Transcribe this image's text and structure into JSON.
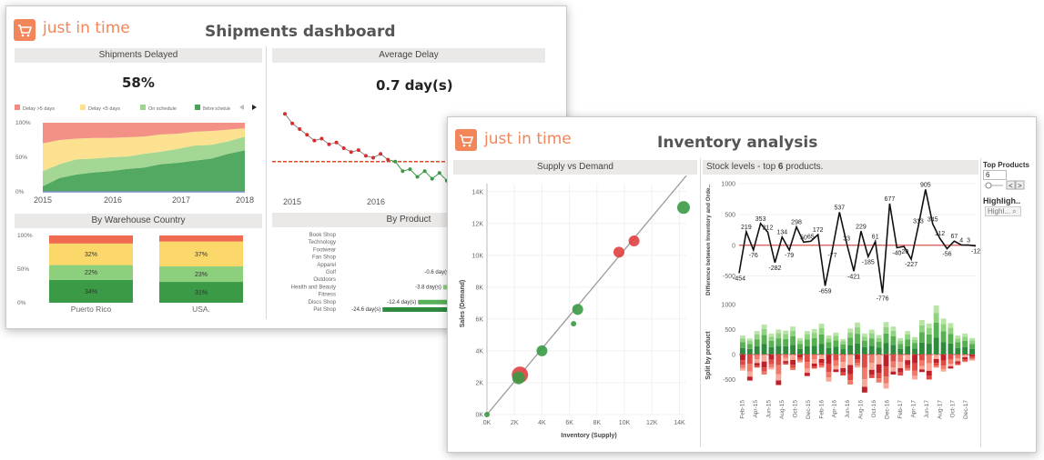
{
  "brand": "just in time",
  "shipments": {
    "title": "Shipments dashboard",
    "delayed_header": "Shipments Delayed",
    "delayed_value": "58%",
    "avg_header": "Average Delay",
    "avg_value": "0.7 day(s)",
    "warehouse_header": "By Warehouse Country",
    "product_header": "By Product",
    "legend": [
      "Delay >5 days",
      "Delay <5 days",
      "On schedule",
      "Before schedule"
    ],
    "legend_colors": [
      "#f28b80",
      "#fce08a",
      "#9fd48e",
      "#4aa35a"
    ]
  },
  "inventory": {
    "title": "Inventory analysis",
    "supply_header": "Supply vs Demand",
    "stock_header_pre": "Stock levels - top ",
    "stock_header_num": "6",
    "stock_header_post": " products.",
    "side": {
      "top_products_label": "Top Products",
      "top_products_value": "6",
      "highlight_label": "Highligh..",
      "highlight_placeholder": "Highl... ⌕"
    }
  },
  "chart_data": [
    {
      "id": "shipments_delayed",
      "type": "area",
      "x_ticks": [
        "2015",
        "2016",
        "2017",
        "2018"
      ],
      "y_ticks": [
        "0%",
        "50%",
        "100%"
      ],
      "ylim": [
        0,
        100
      ],
      "series": [
        {
          "name": "Before schedule",
          "values": [
            8,
            20,
            25,
            28,
            30,
            33,
            35,
            40,
            42,
            45,
            48,
            55,
            60
          ]
        },
        {
          "name": "On schedule",
          "values": [
            22,
            20,
            22,
            20,
            20,
            18,
            20,
            18,
            20,
            22,
            20,
            18,
            20
          ]
        },
        {
          "name": "Delay <5 days",
          "values": [
            40,
            35,
            30,
            30,
            28,
            28,
            25,
            25,
            22,
            20,
            20,
            17,
            12
          ]
        },
        {
          "name": "Delay >5 days",
          "values": [
            30,
            25,
            23,
            22,
            22,
            21,
            20,
            17,
            16,
            13,
            12,
            10,
            8
          ]
        }
      ]
    },
    {
      "id": "average_delay",
      "type": "line",
      "x_ticks": [
        "2015",
        "2016"
      ],
      "values": [
        3.2,
        2.7,
        2.4,
        2.1,
        1.8,
        1.9,
        1.6,
        1.7,
        1.4,
        1.2,
        1.3,
        1.0,
        0.9,
        1.1,
        0.8,
        0.7,
        0.2,
        0.3,
        -0.1,
        0.2,
        -0.2,
        0.1,
        -0.3,
        0.1
      ],
      "reference_line": 0.7
    },
    {
      "id": "by_warehouse",
      "type": "bar",
      "categories": [
        "Puerto Rico",
        "USA."
      ],
      "y_ticks": [
        "0%",
        "50%",
        "100%"
      ],
      "series": [
        {
          "name": "Before schedule",
          "values": [
            34,
            31
          ]
        },
        {
          "name": "On schedule",
          "values": [
            22,
            23
          ]
        },
        {
          "name": "Delay <5 days",
          "values": [
            32,
            37
          ]
        },
        {
          "name": "Delay >5 days",
          "values": [
            12,
            9
          ]
        }
      ],
      "labels": [
        [
          "34%",
          "22%",
          "32%"
        ],
        [
          "31%",
          "23%",
          "37%"
        ]
      ]
    },
    {
      "id": "by_product",
      "type": "bar",
      "categories": [
        "Book Shop",
        "Technology",
        "Footwear",
        "Fan Shop",
        "Apparel",
        "Golf",
        "Outdoors",
        "Health and Beauty",
        "Fitness",
        "Discs Shop",
        "Pet Shop"
      ],
      "values": [
        null,
        null,
        null,
        null,
        null,
        -0.6,
        null,
        -3.8,
        null,
        -12.4,
        -24.6
      ],
      "value_labels": [
        "",
        "",
        "",
        "",
        "",
        "-0.6 day(s)",
        "",
        "-3.8 day(s)",
        "",
        "-12.4 day(s)",
        "-24.6 day(s)"
      ]
    },
    {
      "id": "supply_vs_demand",
      "type": "scatter",
      "xlabel": "Inventory (Supply)",
      "ylabel": "Sales (Demand)",
      "x_ticks": [
        "0K",
        "2K",
        "4K",
        "6K",
        "8K",
        "10K",
        "12K",
        "14K"
      ],
      "y_ticks": [
        "0K",
        "2K",
        "4K",
        "6K",
        "8K",
        "10K",
        "12K",
        "14K"
      ],
      "xlim": [
        0,
        14500
      ],
      "ylim": [
        0,
        14500
      ],
      "points": [
        {
          "x": 0,
          "y": 0,
          "size": 3,
          "color": "#3a9a45"
        },
        {
          "x": 2400,
          "y": 2500,
          "size": 9,
          "color": "#e04040"
        },
        {
          "x": 2300,
          "y": 2300,
          "size": 7,
          "color": "#3a9a45"
        },
        {
          "x": 4000,
          "y": 4000,
          "size": 6,
          "color": "#3a9a45"
        },
        {
          "x": 6300,
          "y": 5700,
          "size": 3,
          "color": "#3a9a45"
        },
        {
          "x": 6600,
          "y": 6600,
          "size": 6,
          "color": "#3a9a45"
        },
        {
          "x": 9600,
          "y": 10200,
          "size": 6,
          "color": "#e04040"
        },
        {
          "x": 10700,
          "y": 10900,
          "size": 6,
          "color": "#e04040"
        },
        {
          "x": 14300,
          "y": 13000,
          "size": 7,
          "color": "#3a9a45"
        }
      ]
    },
    {
      "id": "stock_levels",
      "type": "line",
      "ylabel": "Difference between Inventory and Orde..",
      "y_ticks": [
        "-500",
        "0",
        "500",
        "1000"
      ],
      "ylim": [
        -800,
        1000
      ],
      "values": [
        -454,
        219,
        -76,
        353,
        212,
        -282,
        134,
        -79,
        298,
        50,
        65,
        172,
        -659,
        -77,
        537,
        33,
        -421,
        229,
        -185,
        61,
        -776,
        677,
        -40,
        -20,
        -227,
        313,
        905,
        345,
        112,
        -56,
        67,
        4,
        3,
        -12
      ],
      "labels": [
        "-454",
        "219",
        "-76",
        "353",
        "212",
        "-282",
        "134",
        "-79",
        "298",
        "50",
        "65",
        "172",
        "-659",
        "-77",
        "537",
        "33",
        "-421",
        "229",
        "-185",
        "61",
        "-776",
        "677",
        "-40",
        "-20",
        "-227",
        "313",
        "905",
        "345",
        "112",
        "-56",
        "67",
        "4",
        "3",
        "-12"
      ]
    },
    {
      "id": "split_by_product",
      "type": "bar",
      "ylabel": "Split by product",
      "y_ticks": [
        "-500",
        "0",
        "500",
        "1000"
      ],
      "ylim": [
        -800,
        1000
      ],
      "x_ticks": [
        "Feb-15",
        "Apr-15",
        "Jun-15",
        "Aug-15",
        "Oct-15",
        "Dec-15",
        "Feb-16",
        "Apr-16",
        "Jun-16",
        "Aug-16",
        "Oct-16",
        "Dec-16",
        "Feb-17",
        "Apr-17",
        "Jun-17",
        "Aug-17",
        "Oct-17",
        "Dec-17"
      ],
      "positive": [
        380,
        320,
        470,
        600,
        420,
        500,
        480,
        560,
        330,
        470,
        510,
        620,
        380,
        440,
        310,
        520,
        640,
        420,
        500,
        390,
        650,
        560,
        330,
        470,
        350,
        690,
        620,
        980,
        720,
        630,
        380,
        420,
        330
      ],
      "negative": [
        -320,
        -520,
        -260,
        -400,
        -300,
        -610,
        -200,
        -310,
        -160,
        -430,
        -280,
        -260,
        -540,
        -350,
        -420,
        -600,
        -260,
        -760,
        -470,
        -560,
        -680,
        -400,
        -420,
        -320,
        -500,
        -350,
        -500,
        -260,
        -340,
        -280,
        -210,
        -150,
        -120
      ]
    }
  ]
}
